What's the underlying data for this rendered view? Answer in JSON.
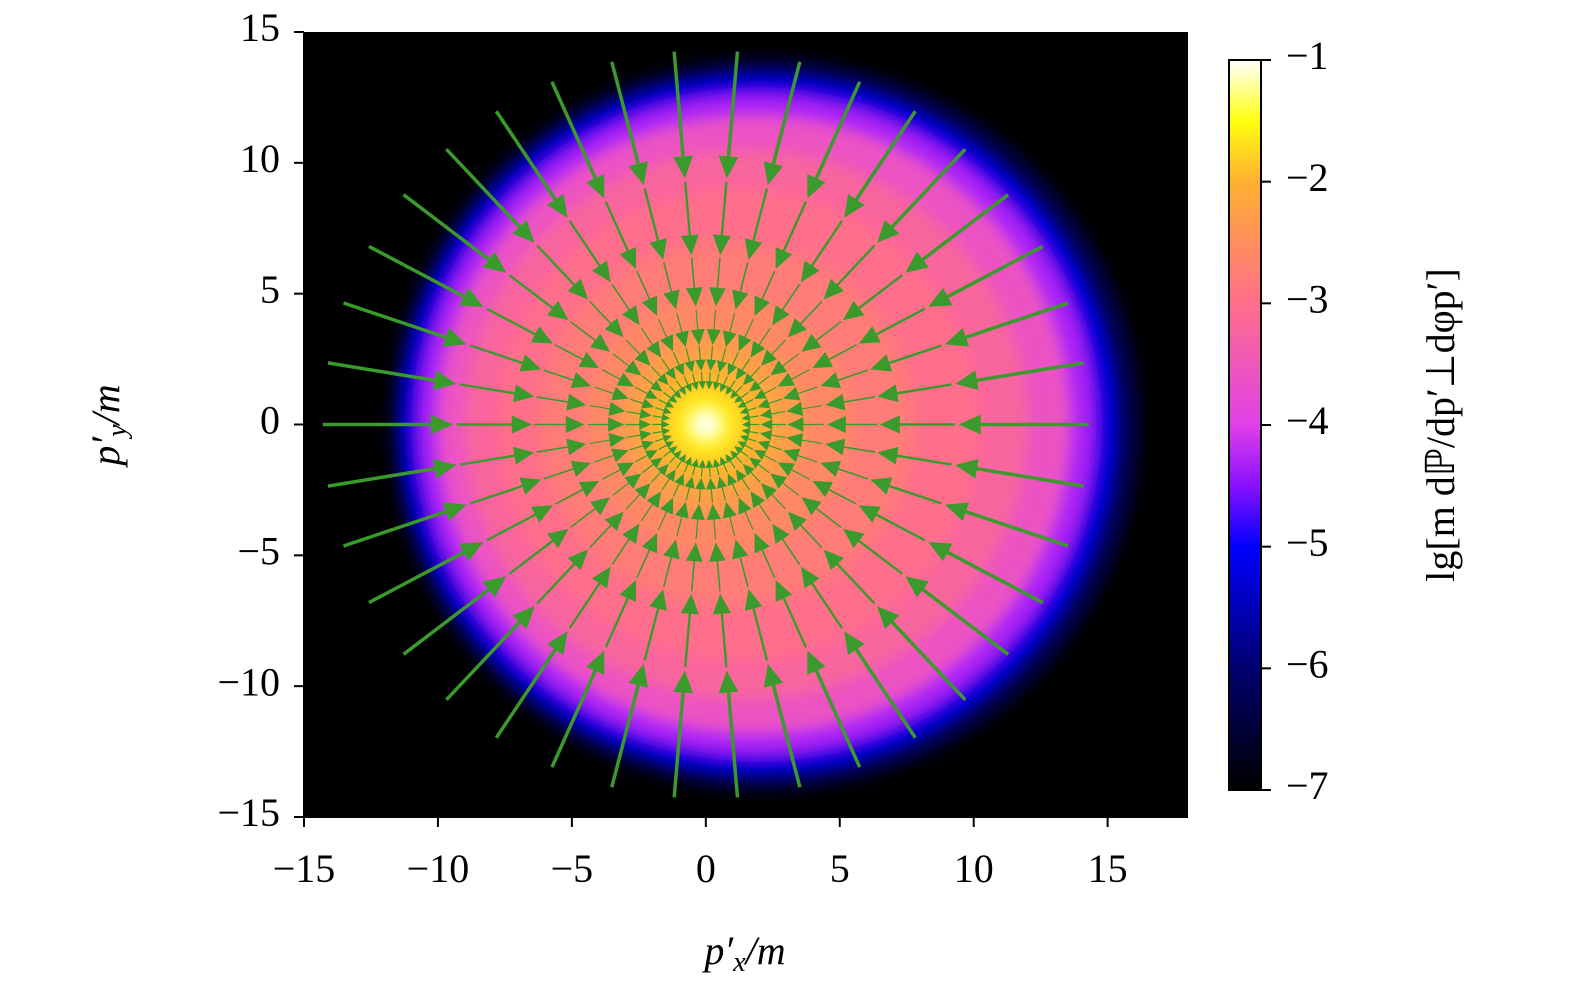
{
  "chart_data": {
    "type": "heatmap",
    "xlabel": {
      "base": "p′",
      "sub": "x",
      "tail": "/m"
    },
    "ylabel": {
      "base": "p′",
      "sub": "y",
      "tail": "/m"
    },
    "colorbar_label": "lg[m dℙ/dp′⊥dφp′]",
    "xlim": [
      -15,
      18
    ],
    "ylim": [
      -15,
      15
    ],
    "xticks": [
      {
        "value": -15,
        "label": "−15"
      },
      {
        "value": -10,
        "label": "−10"
      },
      {
        "value": -5,
        "label": "−5"
      },
      0,
      5,
      10,
      15
    ],
    "yticks": [
      {
        "value": -15,
        "label": "−15"
      },
      {
        "value": -10,
        "label": "−10"
      },
      {
        "value": -5,
        "label": "−5"
      },
      0,
      5,
      10,
      15
    ],
    "clim": [
      -7,
      -1
    ],
    "cticks": [
      {
        "value": -1,
        "label": "−1"
      },
      {
        "value": -2,
        "label": "−2"
      },
      {
        "value": -3,
        "label": "−3"
      },
      {
        "value": -4,
        "label": "−4"
      },
      {
        "value": -5,
        "label": "−5"
      },
      {
        "value": -6,
        "label": "−6"
      },
      {
        "value": -7,
        "label": "−7"
      }
    ],
    "colormap": [
      {
        "value": -7,
        "color": "#000000"
      },
      {
        "value": -6,
        "color": "#000070"
      },
      {
        "value": -5,
        "color": "#0000ff"
      },
      {
        "value": -4.5,
        "color": "#8a10ff"
      },
      {
        "value": -4,
        "color": "#e040e8"
      },
      {
        "value": -3,
        "color": "#ff6e8a"
      },
      {
        "value": -2,
        "color": "#ffb030"
      },
      {
        "value": -1.5,
        "color": "#ffff10"
      },
      {
        "value": -1,
        "color": "#ffffff"
      }
    ],
    "rings": [
      {
        "cx": 2.2,
        "cy": 0,
        "r": 14.0,
        "value": -6.3
      },
      {
        "cx": 2.0,
        "cy": 0,
        "r": 13.3,
        "value": -5.2
      },
      {
        "cx": 1.9,
        "cy": 0,
        "r": 12.6,
        "value": -4.3
      },
      {
        "cx": 1.8,
        "cy": 0,
        "r": 11.8,
        "value": -3.6
      },
      {
        "cx": 1.5,
        "cy": 0,
        "r": 10.5,
        "value": -3.2
      },
      {
        "cx": 1.2,
        "cy": 0,
        "r": 9.0,
        "value": -3.0
      },
      {
        "cx": 0.8,
        "cy": 0,
        "r": 7.0,
        "value": -2.8
      },
      {
        "cx": 0.5,
        "cy": 0,
        "r": 5.0,
        "value": -2.6
      },
      {
        "cx": 0.2,
        "cy": 0,
        "r": 3.5,
        "value": -2.3
      },
      {
        "cx": 0.1,
        "cy": 0,
        "r": 2.5,
        "value": -2.0
      },
      {
        "cx": 0,
        "cy": 0,
        "r": 1.5,
        "value": -1.7
      },
      {
        "cx": 0,
        "cy": 0,
        "r": 0.8,
        "value": -1.4
      },
      {
        "cx": 0,
        "cy": 0,
        "r": 0.4,
        "value": -1.0
      }
    ],
    "vector_color": "#3a9a2c",
    "vectors": [
      {
        "r0": 14.3,
        "r1": 9.6,
        "count": 38
      },
      {
        "r0": 9.3,
        "r1": 6.6,
        "count": 38
      },
      {
        "r0": 6.4,
        "r1": 4.6,
        "count": 38
      },
      {
        "r0": 4.4,
        "r1": 3.1,
        "count": 38
      },
      {
        "r0": 3.0,
        "r1": 2.1,
        "count": 38
      },
      {
        "r0": 2.0,
        "r1": 1.4,
        "count": 38
      }
    ]
  }
}
